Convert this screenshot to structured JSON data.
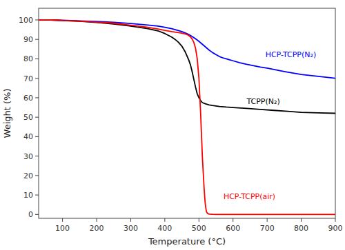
{
  "chart_data": {
    "type": "line",
    "xlabel": "Temperature (°C)",
    "ylabel": "Weight (%)",
    "xlim": [
      30,
      900
    ],
    "ylim": [
      -2,
      106
    ],
    "xticks": [
      100,
      200,
      300,
      400,
      500,
      600,
      700,
      800,
      900
    ],
    "yticks": [
      0,
      10,
      20,
      30,
      40,
      50,
      60,
      70,
      80,
      90,
      100
    ],
    "grid": false,
    "series": [
      {
        "color": "#0000ff",
        "x": [
          30,
          50,
          80,
          100,
          150,
          200,
          250,
          300,
          350,
          380,
          400,
          420,
          440,
          450,
          460,
          470,
          480,
          490,
          500,
          510,
          520,
          530,
          540,
          550,
          560,
          570,
          580,
          590,
          600,
          620,
          640,
          660,
          680,
          700,
          720,
          750,
          800,
          850,
          900
        ],
        "values": [
          100.0,
          100.0,
          99.9,
          99.8,
          99.5,
          99.2,
          98.8,
          98.2,
          97.4,
          96.8,
          96.2,
          95.5,
          94.5,
          94.0,
          93.3,
          92.5,
          91.5,
          90.3,
          89.0,
          87.5,
          86.0,
          84.5,
          83.2,
          82.2,
          81.2,
          80.5,
          80.0,
          79.5,
          79.0,
          78.0,
          77.2,
          76.5,
          75.8,
          75.2,
          74.5,
          73.5,
          72.0,
          71.0,
          70.0
        ]
      },
      {
        "color": "#000000",
        "x": [
          30,
          50,
          80,
          100,
          150,
          200,
          250,
          300,
          350,
          380,
          400,
          420,
          430,
          440,
          450,
          460,
          470,
          475,
          480,
          485,
          490,
          495,
          500,
          505,
          510,
          520,
          530,
          540,
          550,
          560,
          580,
          600,
          640,
          680,
          720,
          760,
          800,
          850,
          900
        ],
        "values": [
          100.0,
          100.0,
          99.9,
          99.7,
          99.3,
          98.7,
          97.9,
          96.8,
          95.5,
          94.4,
          93.0,
          91.2,
          90.0,
          88.5,
          86.5,
          83.5,
          79.5,
          77.0,
          73.5,
          69.5,
          65.5,
          62.0,
          60.0,
          58.5,
          57.5,
          56.8,
          56.3,
          56.0,
          55.8,
          55.5,
          55.2,
          55.0,
          54.5,
          54.0,
          53.5,
          53.0,
          52.5,
          52.2,
          52.0
        ]
      },
      {
        "color": "#ff0000",
        "x": [
          30,
          50,
          80,
          100,
          150,
          200,
          250,
          300,
          350,
          380,
          400,
          420,
          440,
          450,
          460,
          465,
          470,
          475,
          480,
          485,
          490,
          495,
          500,
          505,
          510,
          515,
          518,
          520,
          522,
          525,
          530,
          540,
          550,
          600,
          650,
          700,
          750,
          800,
          850,
          900
        ],
        "values": [
          100.0,
          100.0,
          99.9,
          99.7,
          99.4,
          98.9,
          98.3,
          97.3,
          96.2,
          95.3,
          94.6,
          94.0,
          93.5,
          93.2,
          92.8,
          92.5,
          92.0,
          91.3,
          90.2,
          88.5,
          85.5,
          80.0,
          70.0,
          52.0,
          30.0,
          14.0,
          6.5,
          3.5,
          1.5,
          0.5,
          0.15,
          0.05,
          0.0,
          0.0,
          0.0,
          0.0,
          0.0,
          0.0,
          0.0,
          0.0
        ]
      }
    ],
    "annotations": [
      {
        "text": "HCP-TCPP(N₂)",
        "x": 695,
        "y": 82,
        "color": "#0000ff"
      },
      {
        "text": "TCPP(N₂)",
        "x": 640,
        "y": 58,
        "color": "#000000"
      },
      {
        "text": "HCP-TCPP(air)",
        "x": 572,
        "y": 9,
        "color": "#ff0000"
      }
    ]
  }
}
